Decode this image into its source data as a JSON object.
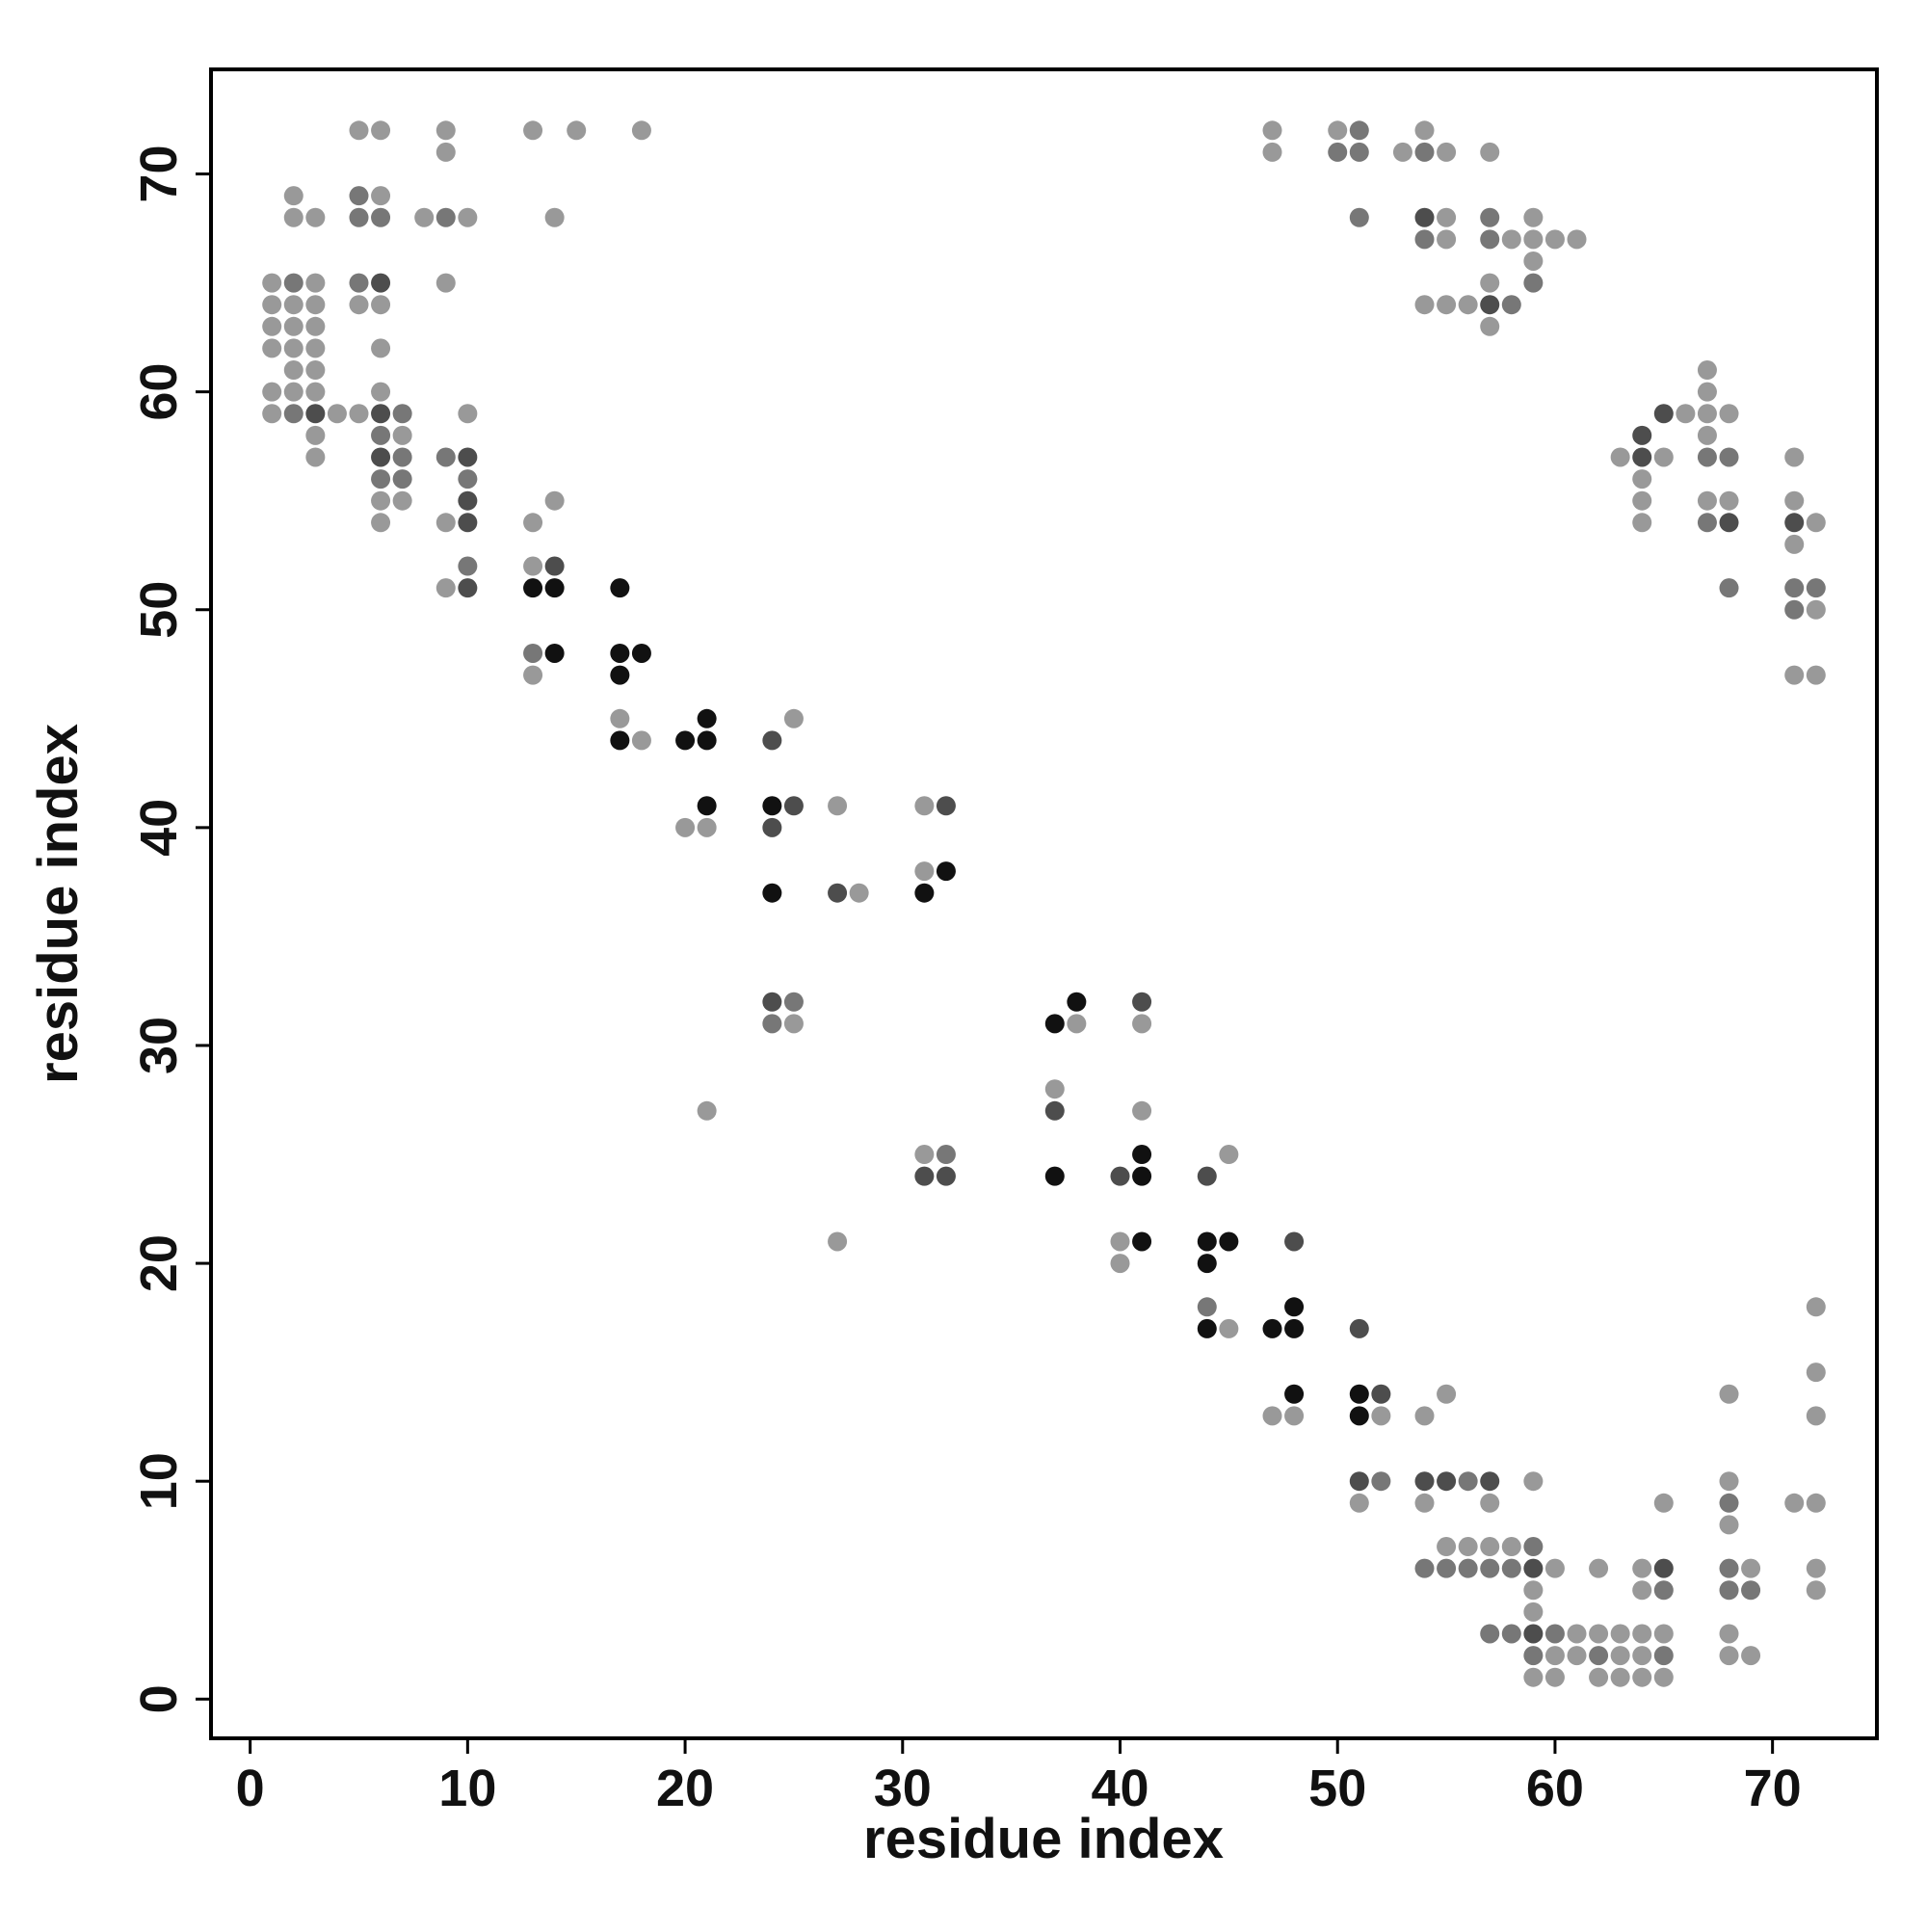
{
  "chart_data": {
    "type": "scatter",
    "xlabel": "residue index",
    "ylabel": "residue index",
    "xlim": [
      -1.8,
      74.8
    ],
    "ylim": [
      -1.8,
      74.8
    ],
    "xticks": [
      0,
      10,
      20,
      30,
      40,
      50,
      60,
      70
    ],
    "yticks": [
      0,
      10,
      20,
      30,
      40,
      50,
      60,
      70
    ],
    "series": [
      {
        "color": "#999999",
        "x": [
          5,
          6,
          9,
          13,
          15,
          18,
          47,
          50,
          54,
          9,
          47,
          53,
          55,
          57,
          2,
          6,
          2,
          3,
          8,
          10,
          14,
          55,
          59,
          55,
          58,
          59,
          60,
          61,
          59,
          1,
          3,
          9,
          57,
          1,
          2,
          3,
          5,
          6,
          54,
          55,
          56,
          1,
          2,
          3,
          57,
          1,
          2,
          3,
          6,
          2,
          3,
          67,
          1,
          2,
          3,
          6,
          67,
          1,
          4,
          5,
          10,
          66,
          67,
          68,
          3,
          7,
          67,
          3,
          63,
          65,
          71,
          64,
          6,
          7,
          14,
          64,
          67,
          68,
          71,
          6,
          9,
          13,
          64,
          72,
          71,
          13,
          9,
          72,
          13,
          71,
          72,
          17,
          25,
          18,
          27,
          31,
          20,
          21,
          31,
          28,
          25,
          38,
          41,
          37,
          21,
          41,
          31,
          45,
          27,
          40,
          40,
          72,
          45,
          72,
          55,
          68,
          47,
          48,
          52,
          54,
          72,
          59,
          68,
          51,
          54,
          57,
          65,
          71,
          72,
          68,
          55,
          56,
          57,
          58,
          60,
          62,
          64,
          69,
          72,
          59,
          64,
          72,
          59,
          61,
          62,
          63,
          64,
          65,
          68,
          60,
          61,
          63,
          64,
          68,
          69,
          59,
          60,
          62,
          63,
          64,
          65
        ],
        "y": [
          72,
          72,
          72,
          72,
          72,
          72,
          72,
          72,
          72,
          71,
          71,
          71,
          71,
          71,
          69,
          69,
          68,
          68,
          68,
          68,
          68,
          68,
          68,
          67,
          67,
          67,
          67,
          67,
          66,
          65,
          65,
          65,
          65,
          64,
          64,
          64,
          64,
          64,
          64,
          64,
          64,
          63,
          63,
          63,
          63,
          62,
          62,
          62,
          62,
          61,
          61,
          61,
          60,
          60,
          60,
          60,
          60,
          59,
          59,
          59,
          59,
          59,
          59,
          59,
          58,
          58,
          58,
          57,
          57,
          57,
          57,
          56,
          55,
          55,
          55,
          55,
          55,
          55,
          55,
          54,
          54,
          54,
          54,
          54,
          53,
          52,
          51,
          50,
          47,
          47,
          47,
          45,
          45,
          44,
          41,
          41,
          40,
          40,
          38,
          37,
          31,
          31,
          31,
          28,
          27,
          27,
          25,
          25,
          21,
          21,
          20,
          18,
          17,
          15,
          14,
          14,
          13,
          13,
          13,
          13,
          13,
          10,
          10,
          9,
          9,
          9,
          9,
          9,
          9,
          8,
          7,
          7,
          7,
          7,
          6,
          6,
          6,
          6,
          6,
          5,
          5,
          5,
          4,
          3,
          3,
          3,
          3,
          3,
          3,
          2,
          2,
          2,
          2,
          2,
          2,
          1,
          1,
          1,
          1,
          1,
          1
        ]
      },
      {
        "color": "#777777",
        "x": [
          51,
          50,
          51,
          54,
          5,
          5,
          6,
          9,
          51,
          57,
          54,
          57,
          2,
          5,
          59,
          58,
          2,
          7,
          6,
          7,
          9,
          67,
          68,
          6,
          7,
          10,
          67,
          10,
          68,
          71,
          72,
          71,
          13,
          25,
          24,
          32,
          44,
          52,
          56,
          68,
          59,
          54,
          55,
          56,
          57,
          58,
          68,
          65,
          68,
          69,
          57,
          58,
          60,
          59,
          62,
          65
        ],
        "y": [
          72,
          71,
          71,
          71,
          69,
          68,
          68,
          68,
          68,
          68,
          67,
          67,
          65,
          65,
          65,
          64,
          59,
          59,
          58,
          57,
          57,
          57,
          57,
          56,
          56,
          56,
          54,
          52,
          51,
          51,
          51,
          50,
          48,
          32,
          31,
          25,
          18,
          10,
          10,
          9,
          7,
          6,
          6,
          6,
          6,
          6,
          6,
          5,
          5,
          5,
          3,
          3,
          3,
          2,
          2,
          2
        ]
      },
      {
        "color": "#4d4d4d",
        "x": [
          54,
          6,
          57,
          3,
          6,
          65,
          64,
          6,
          10,
          64,
          10,
          10,
          68,
          71,
          14,
          10,
          24,
          25,
          32,
          24,
          27,
          24,
          41,
          37,
          31,
          32,
          40,
          44,
          48,
          51,
          52,
          51,
          54,
          55,
          57,
          59,
          65,
          59
        ],
        "y": [
          68,
          65,
          64,
          59,
          59,
          59,
          58,
          57,
          57,
          57,
          55,
          54,
          54,
          54,
          52,
          51,
          44,
          41,
          41,
          40,
          37,
          32,
          32,
          27,
          24,
          24,
          24,
          24,
          21,
          17,
          14,
          10,
          10,
          10,
          10,
          6,
          6,
          3
        ]
      },
      {
        "color": "#111111",
        "x": [
          13,
          14,
          17,
          14,
          17,
          18,
          17,
          21,
          17,
          20,
          21,
          21,
          24,
          32,
          24,
          31,
          38,
          37,
          41,
          37,
          41,
          41,
          44,
          45,
          44,
          48,
          44,
          47,
          48,
          48,
          51,
          51
        ],
        "y": [
          51,
          51,
          51,
          48,
          48,
          48,
          47,
          45,
          44,
          44,
          44,
          41,
          41,
          38,
          37,
          37,
          32,
          31,
          25,
          24,
          24,
          21,
          21,
          21,
          20,
          18,
          17,
          17,
          17,
          14,
          14,
          13
        ]
      }
    ]
  }
}
